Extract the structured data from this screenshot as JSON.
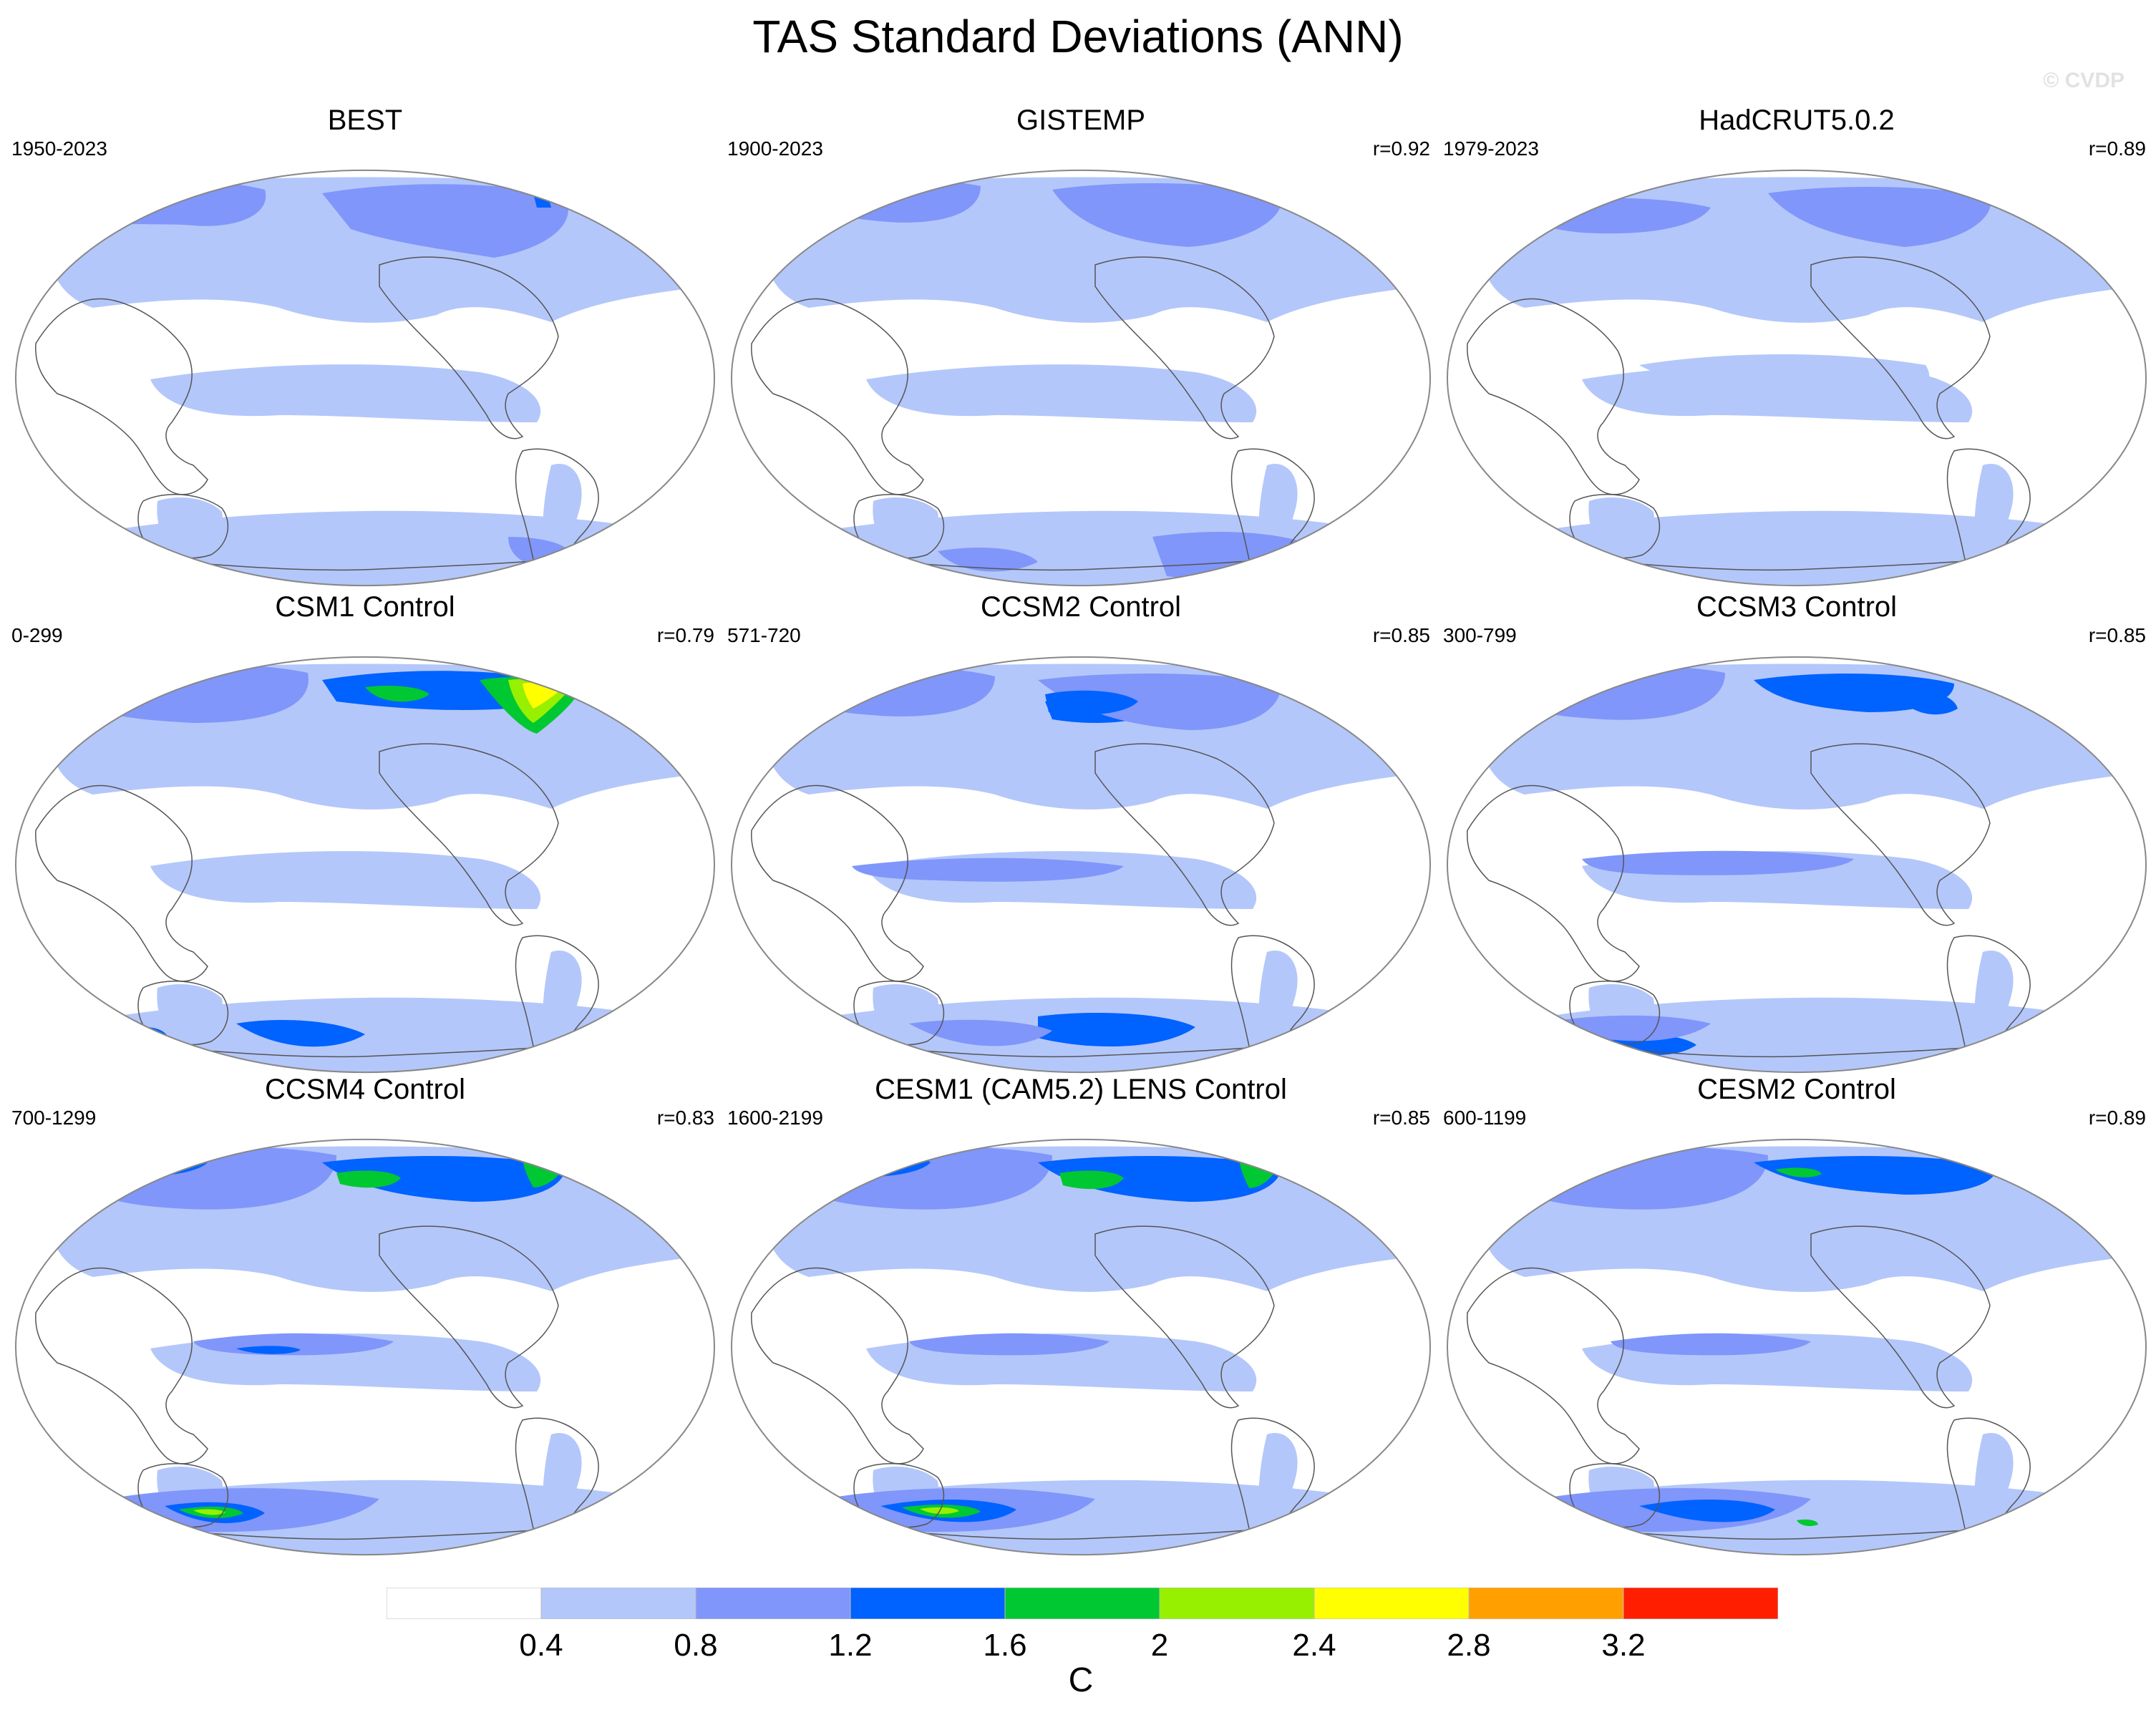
{
  "title": "TAS Standard Deviations (ANN)",
  "watermark": "© CVDP",
  "panels": [
    {
      "title": "BEST",
      "years": "1950-2023",
      "corr": "",
      "style": "obs1"
    },
    {
      "title": "GISTEMP",
      "years": "1900-2023",
      "corr": "r=0.92",
      "style": "obs2"
    },
    {
      "title": "HadCRUT5.0.2",
      "years": "1979-2023",
      "corr": "r=0.89",
      "style": "obs3"
    },
    {
      "title": "CSM1 Control",
      "years": "0-299",
      "corr": "r=0.79",
      "style": "csm1"
    },
    {
      "title": "CCSM2 Control",
      "years": "571-720",
      "corr": "r=0.85",
      "style": "ccsm2"
    },
    {
      "title": "CCSM3 Control",
      "years": "300-799",
      "corr": "r=0.85",
      "style": "ccsm3"
    },
    {
      "title": "CCSM4 Control",
      "years": "700-1299",
      "corr": "r=0.83",
      "style": "ccsm4"
    },
    {
      "title": "CESM1 (CAM5.2) LENS Control",
      "years": "1600-2199",
      "corr": "r=0.85",
      "style": "cesm1"
    },
    {
      "title": "CESM2 Control",
      "years": "600-1199",
      "corr": "r=0.89",
      "style": "cesm2"
    }
  ],
  "colorbar": {
    "unit": "C",
    "ticks": [
      "0.4",
      "0.8",
      "1.2",
      "1.6",
      "2",
      "2.4",
      "2.8",
      "3.2"
    ],
    "colors": [
      "#ffffff",
      "#b4c7fa",
      "#8096fa",
      "#0062ff",
      "#00c832",
      "#96f000",
      "#ffff00",
      "#ffa000",
      "#ff1e00"
    ]
  }
}
